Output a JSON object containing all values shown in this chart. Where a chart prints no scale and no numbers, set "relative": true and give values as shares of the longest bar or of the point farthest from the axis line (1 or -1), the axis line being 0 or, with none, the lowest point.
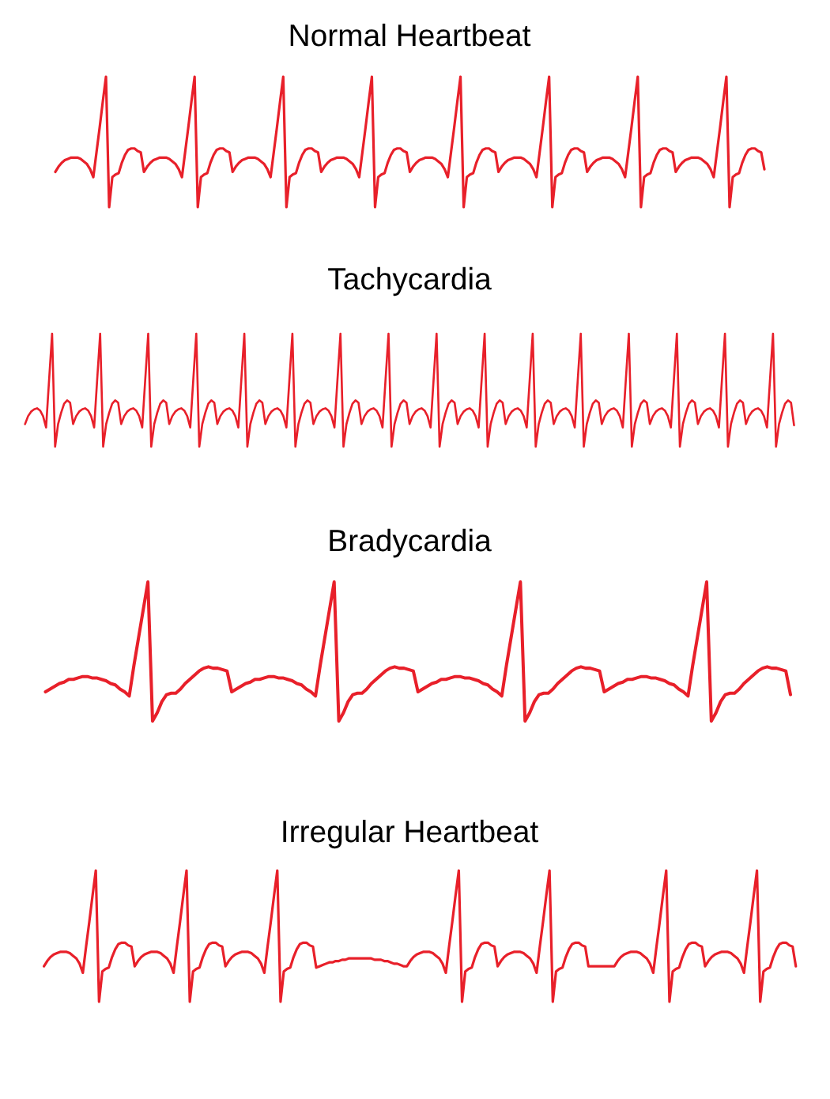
{
  "chart_data": [
    {
      "type": "line",
      "title": "Normal Heartbeat",
      "relative": true,
      "color": "#e8202a",
      "categories": [
        null,
        null,
        null,
        null,
        null,
        null,
        null,
        null,
        null,
        null,
        null,
        null,
        null,
        null,
        null,
        null,
        null,
        null,
        null,
        null,
        null,
        null,
        null,
        null,
        null,
        null,
        null,
        null,
        null,
        null,
        null,
        null,
        null,
        null,
        null,
        null,
        null,
        null,
        null,
        null,
        null,
        null,
        null,
        null,
        null,
        null,
        null,
        null,
        null,
        null,
        null,
        null,
        null,
        null,
        null,
        null,
        null,
        null,
        null,
        null,
        null,
        null,
        null,
        null,
        null,
        null,
        null,
        null,
        null,
        null,
        null,
        null,
        null,
        null,
        null,
        null,
        null,
        null,
        null,
        null,
        null,
        null,
        null,
        null,
        null,
        null,
        null,
        null,
        null,
        null,
        null,
        null,
        null,
        null,
        null,
        null,
        null,
        null,
        null,
        null,
        null,
        null,
        null,
        null,
        null,
        null,
        null,
        null,
        null,
        null,
        null,
        null,
        null,
        null,
        null,
        null,
        null,
        null,
        null,
        null,
        null,
        null,
        null,
        null,
        null,
        null,
        null,
        null,
        null,
        null,
        null,
        null,
        null,
        null,
        null,
        null,
        null,
        null,
        null,
        null,
        null,
        null,
        null,
        null,
        null,
        null,
        null,
        null,
        null,
        null,
        null,
        null,
        null,
        null,
        null,
        null,
        null,
        null,
        null,
        null,
        null,
        null,
        null,
        null,
        null,
        null,
        null,
        null,
        null,
        null,
        null,
        null,
        null,
        null,
        null,
        null,
        null,
        null,
        null,
        null,
        null,
        null,
        null,
        null,
        null,
        null,
        null,
        null,
        null,
        null,
        null,
        null,
        null,
        null,
        null,
        null,
        null,
        null,
        null,
        null,
        null,
        null,
        null,
        null,
        null,
        null,
        null,
        null,
        null,
        null,
        null,
        null,
        null,
        null,
        null,
        null,
        null,
        null,
        null,
        null,
        null,
        null,
        null,
        null,
        null
      ],
      "values": [
        0.27,
        0.31,
        0.34,
        0.36,
        0.37,
        0.38,
        0.38,
        0.38,
        0.37,
        0.35,
        0.33,
        0.29,
        0.23,
        0.42,
        0.61,
        0.81,
        1,
        0,
        0.23,
        0.25,
        0.26,
        0.34,
        0.4,
        0.44,
        0.45,
        0.45,
        0.43,
        0.42,
        0.27,
        0.31,
        0.34,
        0.36,
        0.37,
        0.38,
        0.38,
        0.38,
        0.37,
        0.35,
        0.33,
        0.29,
        0.23,
        0.42,
        0.61,
        0.81,
        1,
        0,
        0.23,
        0.25,
        0.26,
        0.34,
        0.4,
        0.44,
        0.45,
        0.45,
        0.43,
        0.42,
        0.27,
        0.31,
        0.34,
        0.36,
        0.37,
        0.38,
        0.38,
        0.38,
        0.37,
        0.35,
        0.33,
        0.29,
        0.23,
        0.42,
        0.61,
        0.81,
        1,
        0,
        0.23,
        0.25,
        0.26,
        0.34,
        0.4,
        0.44,
        0.45,
        0.45,
        0.43,
        0.42,
        0.27,
        0.31,
        0.34,
        0.36,
        0.37,
        0.38,
        0.38,
        0.38,
        0.37,
        0.35,
        0.33,
        0.29,
        0.23,
        0.42,
        0.61,
        0.81,
        1,
        0,
        0.23,
        0.25,
        0.26,
        0.34,
        0.4,
        0.44,
        0.45,
        0.45,
        0.43,
        0.42,
        0.27,
        0.31,
        0.34,
        0.36,
        0.37,
        0.38,
        0.38,
        0.38,
        0.37,
        0.35,
        0.33,
        0.29,
        0.23,
        0.42,
        0.61,
        0.81,
        1,
        0,
        0.23,
        0.25,
        0.26,
        0.34,
        0.4,
        0.44,
        0.45,
        0.45,
        0.43,
        0.42,
        0.27,
        0.31,
        0.34,
        0.36,
        0.37,
        0.38,
        0.38,
        0.38,
        0.37,
        0.35,
        0.33,
        0.29,
        0.23,
        0.42,
        0.61,
        0.81,
        1,
        0,
        0.23,
        0.25,
        0.26,
        0.34,
        0.4,
        0.44,
        0.45,
        0.45,
        0.43,
        0.42,
        0.27,
        0.31,
        0.34,
        0.36,
        0.37,
        0.38,
        0.38,
        0.38,
        0.37,
        0.35,
        0.33,
        0.29,
        0.23,
        0.42,
        0.61,
        0.81,
        1,
        0,
        0.23,
        0.25,
        0.26,
        0.34,
        0.4,
        0.44,
        0.45,
        0.45,
        0.43,
        0.42,
        0.27,
        0.31,
        0.34,
        0.36,
        0.37,
        0.38,
        0.38,
        0.38,
        0.37,
        0.35,
        0.33,
        0.29,
        0.23,
        0.42,
        0.61,
        0.81,
        1,
        0,
        0.23,
        0.25,
        0.26,
        0.34,
        0.4,
        0.44,
        0.45,
        0.45,
        0.43,
        0.42,
        0.29
      ]
    },
    {
      "type": "line",
      "title": "Tachycardia",
      "relative": true,
      "color": "#e8202a",
      "categories": [
        null,
        null,
        null,
        null,
        null,
        null,
        null,
        null,
        null,
        null,
        null,
        null,
        null,
        null,
        null,
        null,
        null,
        null,
        null,
        null,
        null,
        null,
        null,
        null,
        null,
        null,
        null,
        null,
        null,
        null,
        null,
        null,
        null,
        null,
        null,
        null,
        null,
        null,
        null,
        null,
        null,
        null,
        null,
        null,
        null,
        null,
        null,
        null,
        null,
        null,
        null,
        null,
        null,
        null,
        null,
        null,
        null,
        null,
        null,
        null,
        null,
        null,
        null,
        null,
        null,
        null,
        null,
        null,
        null,
        null,
        null,
        null,
        null,
        null,
        null,
        null,
        null,
        null,
        null,
        null,
        null,
        null,
        null,
        null,
        null,
        null,
        null,
        null,
        null,
        null,
        null,
        null,
        null,
        null,
        null,
        null,
        null,
        null,
        null,
        null,
        null,
        null,
        null,
        null,
        null,
        null,
        null,
        null,
        null,
        null,
        null,
        null,
        null,
        null,
        null,
        null,
        null,
        null,
        null,
        null,
        null,
        null,
        null,
        null,
        null,
        null,
        null,
        null,
        null,
        null,
        null,
        null,
        null,
        null,
        null,
        null,
        null,
        null,
        null,
        null,
        null,
        null,
        null,
        null,
        null,
        null,
        null,
        null,
        null,
        null,
        null,
        null,
        null,
        null,
        null,
        null,
        null,
        null,
        null,
        null,
        null,
        null,
        null,
        null,
        null,
        null,
        null,
        null,
        null,
        null,
        null,
        null,
        null,
        null,
        null,
        null,
        null,
        null,
        null,
        null,
        null,
        null,
        null,
        null,
        null,
        null,
        null,
        null,
        null,
        null,
        null,
        null,
        null,
        null,
        null,
        null,
        null,
        null,
        null,
        null,
        null,
        null,
        null,
        null,
        null,
        null,
        null,
        null,
        null,
        null,
        null,
        null,
        null,
        null,
        null,
        null,
        null,
        null,
        null,
        null,
        null,
        null,
        null,
        null,
        null,
        null,
        null,
        null,
        null,
        null,
        null,
        null,
        null,
        null,
        null,
        null,
        null,
        null,
        null,
        null,
        null,
        null,
        null,
        null,
        null,
        null,
        null,
        null,
        null,
        null,
        null,
        null,
        null,
        null,
        null,
        null,
        null
      ],
      "values": [
        0.2,
        0.27,
        0.31,
        0.33,
        0.34,
        0.32,
        0.27,
        0.17,
        0.59,
        1,
        0,
        0.2,
        0.3,
        0.38,
        0.41,
        0.39,
        0.2,
        0.27,
        0.31,
        0.33,
        0.34,
        0.32,
        0.27,
        0.17,
        0.59,
        1,
        0,
        0.2,
        0.3,
        0.38,
        0.41,
        0.39,
        0.2,
        0.27,
        0.31,
        0.33,
        0.34,
        0.32,
        0.27,
        0.17,
        0.59,
        1,
        0,
        0.2,
        0.3,
        0.38,
        0.41,
        0.39,
        0.2,
        0.27,
        0.31,
        0.33,
        0.34,
        0.32,
        0.27,
        0.17,
        0.59,
        1,
        0,
        0.2,
        0.3,
        0.38,
        0.41,
        0.39,
        0.2,
        0.27,
        0.31,
        0.33,
        0.34,
        0.32,
        0.27,
        0.17,
        0.59,
        1,
        0,
        0.2,
        0.3,
        0.38,
        0.41,
        0.39,
        0.2,
        0.27,
        0.31,
        0.33,
        0.34,
        0.32,
        0.27,
        0.17,
        0.59,
        1,
        0,
        0.2,
        0.3,
        0.38,
        0.41,
        0.39,
        0.2,
        0.27,
        0.31,
        0.33,
        0.34,
        0.32,
        0.27,
        0.17,
        0.59,
        1,
        0,
        0.2,
        0.3,
        0.38,
        0.41,
        0.39,
        0.2,
        0.27,
        0.31,
        0.33,
        0.34,
        0.32,
        0.27,
        0.17,
        0.59,
        1,
        0,
        0.2,
        0.3,
        0.38,
        0.41,
        0.39,
        0.2,
        0.27,
        0.31,
        0.33,
        0.34,
        0.32,
        0.27,
        0.17,
        0.59,
        1,
        0,
        0.2,
        0.3,
        0.38,
        0.41,
        0.39,
        0.2,
        0.27,
        0.31,
        0.33,
        0.34,
        0.32,
        0.27,
        0.17,
        0.59,
        1,
        0,
        0.2,
        0.3,
        0.38,
        0.41,
        0.39,
        0.2,
        0.27,
        0.31,
        0.33,
        0.34,
        0.32,
        0.27,
        0.17,
        0.59,
        1,
        0,
        0.2,
        0.3,
        0.38,
        0.41,
        0.39,
        0.2,
        0.27,
        0.31,
        0.33,
        0.34,
        0.32,
        0.27,
        0.17,
        0.59,
        1,
        0,
        0.2,
        0.3,
        0.38,
        0.41,
        0.39,
        0.2,
        0.27,
        0.31,
        0.33,
        0.34,
        0.32,
        0.27,
        0.17,
        0.59,
        1,
        0,
        0.2,
        0.3,
        0.38,
        0.41,
        0.39,
        0.2,
        0.27,
        0.31,
        0.33,
        0.34,
        0.32,
        0.27,
        0.17,
        0.59,
        1,
        0,
        0.2,
        0.3,
        0.38,
        0.41,
        0.39,
        0.2,
        0.27,
        0.31,
        0.33,
        0.34,
        0.32,
        0.27,
        0.17,
        0.59,
        1,
        0,
        0.2,
        0.3,
        0.38,
        0.41,
        0.39,
        0.2,
        0.27,
        0.31,
        0.33,
        0.34,
        0.32,
        0.27,
        0.17,
        0.59,
        1,
        0,
        0.2,
        0.3,
        0.38,
        0.41,
        0.39,
        0.19
      ]
    },
    {
      "type": "line",
      "title": "Bradycardia",
      "relative": true,
      "color": "#e8202a",
      "categories": [
        null,
        null,
        null,
        null,
        null,
        null,
        null,
        null,
        null,
        null,
        null,
        null,
        null,
        null,
        null,
        null,
        null,
        null,
        null,
        null,
        null,
        null,
        null,
        null,
        null,
        null,
        null,
        null,
        null,
        null,
        null,
        null,
        null,
        null,
        null,
        null,
        null,
        null,
        null,
        null,
        null,
        null,
        null,
        null,
        null,
        null,
        null,
        null,
        null,
        null,
        null,
        null,
        null,
        null,
        null,
        null,
        null,
        null,
        null,
        null,
        null,
        null,
        null,
        null,
        null,
        null,
        null,
        null,
        null,
        null,
        null,
        null,
        null,
        null,
        null,
        null,
        null,
        null,
        null,
        null,
        null,
        null,
        null,
        null,
        null,
        null,
        null,
        null,
        null,
        null,
        null,
        null,
        null,
        null,
        null,
        null,
        null,
        null,
        null,
        null,
        null,
        null,
        null,
        null,
        null,
        null,
        null,
        null,
        null,
        null,
        null,
        null,
        null,
        null,
        null,
        null,
        null,
        null,
        null,
        null,
        null,
        null,
        null,
        null,
        null,
        null,
        null,
        null,
        null,
        null,
        null,
        null,
        null,
        null,
        null,
        null,
        null,
        null,
        null,
        null,
        null,
        null,
        null,
        null,
        null,
        null,
        null,
        null,
        null,
        null,
        null,
        null,
        null,
        null,
        null,
        null,
        null,
        null,
        null,
        null,
        null
      ],
      "values": [
        0.21,
        0.23,
        0.25,
        0.27,
        0.28,
        0.3,
        0.3,
        0.31,
        0.32,
        0.32,
        0.31,
        0.31,
        0.3,
        0.29,
        0.27,
        0.26,
        0.23,
        0.21,
        0.18,
        0.4,
        0.6,
        0.8,
        1,
        0,
        0.06,
        0.14,
        0.19,
        0.2,
        0.2,
        0.23,
        0.27,
        0.3,
        0.33,
        0.36,
        0.38,
        0.39,
        0.38,
        0.38,
        0.37,
        0.36,
        0.21,
        0.23,
        0.25,
        0.27,
        0.28,
        0.3,
        0.3,
        0.31,
        0.32,
        0.32,
        0.31,
        0.31,
        0.3,
        0.29,
        0.27,
        0.26,
        0.23,
        0.21,
        0.18,
        0.4,
        0.6,
        0.8,
        1,
        0,
        0.06,
        0.14,
        0.19,
        0.2,
        0.2,
        0.23,
        0.27,
        0.3,
        0.33,
        0.36,
        0.38,
        0.39,
        0.38,
        0.38,
        0.37,
        0.36,
        0.21,
        0.23,
        0.25,
        0.27,
        0.28,
        0.3,
        0.3,
        0.31,
        0.32,
        0.32,
        0.31,
        0.31,
        0.3,
        0.29,
        0.27,
        0.26,
        0.23,
        0.21,
        0.18,
        0.4,
        0.6,
        0.8,
        1,
        0,
        0.06,
        0.14,
        0.19,
        0.2,
        0.2,
        0.23,
        0.27,
        0.3,
        0.33,
        0.36,
        0.38,
        0.39,
        0.38,
        0.38,
        0.37,
        0.36,
        0.21,
        0.23,
        0.25,
        0.27,
        0.28,
        0.3,
        0.3,
        0.31,
        0.32,
        0.32,
        0.31,
        0.31,
        0.3,
        0.29,
        0.27,
        0.26,
        0.23,
        0.21,
        0.18,
        0.4,
        0.6,
        0.8,
        1,
        0,
        0.06,
        0.14,
        0.19,
        0.2,
        0.2,
        0.23,
        0.27,
        0.3,
        0.33,
        0.36,
        0.38,
        0.39,
        0.38,
        0.38,
        0.37,
        0.36,
        0.19
      ]
    },
    {
      "type": "line",
      "title": "Irregular Heartbeat",
      "relative": true,
      "color": "#e8202a",
      "categories": [
        null,
        null,
        null,
        null,
        null,
        null,
        null,
        null,
        null,
        null,
        null,
        null,
        null,
        null,
        null,
        null,
        null,
        null,
        null,
        null,
        null,
        null,
        null,
        null,
        null,
        null,
        null,
        null,
        null,
        null,
        null,
        null,
        null,
        null,
        null,
        null,
        null,
        null,
        null,
        null,
        null,
        null,
        null,
        null,
        null,
        null,
        null,
        null,
        null,
        null,
        null,
        null,
        null,
        null,
        null,
        null,
        null,
        null,
        null,
        null,
        null,
        null,
        null,
        null,
        null,
        null,
        null,
        null,
        null,
        null,
        null,
        null,
        null,
        null,
        null,
        null,
        null,
        null,
        null,
        null,
        null,
        null,
        null,
        null,
        null,
        null,
        null,
        null,
        null,
        null,
        null,
        null,
        null,
        null,
        null,
        null,
        null,
        null,
        null,
        null,
        null,
        null,
        null,
        null,
        null,
        null,
        null,
        null,
        null,
        null,
        null,
        null,
        null,
        null,
        null,
        null,
        null,
        null,
        null,
        null,
        null,
        null,
        null,
        null,
        null,
        null,
        null,
        null,
        null,
        null,
        null,
        null,
        null,
        null,
        null,
        null,
        null,
        null,
        null,
        null,
        null,
        null,
        null,
        null,
        null,
        null,
        null,
        null,
        null,
        null,
        null,
        null,
        null,
        null,
        null,
        null,
        null,
        null,
        null,
        null,
        null,
        null,
        null,
        null,
        null,
        null,
        null,
        null,
        null,
        null,
        null,
        null,
        null,
        null,
        null,
        null,
        null,
        null,
        null,
        null,
        null,
        null,
        null,
        null,
        null,
        null,
        null,
        null,
        null,
        null,
        null,
        null,
        null,
        null,
        null,
        null,
        null,
        null,
        null,
        null,
        null,
        null,
        null,
        null,
        null,
        null,
        null,
        null,
        null,
        null,
        null,
        null,
        null,
        null,
        null,
        null,
        null,
        null,
        null,
        null,
        null,
        null,
        null,
        null,
        null,
        null,
        null,
        null,
        null,
        null,
        null,
        null,
        null
      ],
      "values": [
        0.27,
        0.31,
        0.34,
        0.36,
        0.37,
        0.38,
        0.38,
        0.38,
        0.37,
        0.35,
        0.33,
        0.29,
        0.22,
        0.42,
        0.61,
        0.81,
        1,
        0,
        0.23,
        0.25,
        0.26,
        0.34,
        0.4,
        0.44,
        0.45,
        0.45,
        0.43,
        0.42,
        0.27,
        0.31,
        0.34,
        0.36,
        0.37,
        0.38,
        0.38,
        0.38,
        0.37,
        0.35,
        0.33,
        0.29,
        0.22,
        0.42,
        0.61,
        0.81,
        1,
        0,
        0.23,
        0.25,
        0.26,
        0.34,
        0.4,
        0.44,
        0.45,
        0.45,
        0.43,
        0.42,
        0.27,
        0.31,
        0.34,
        0.36,
        0.37,
        0.38,
        0.38,
        0.38,
        0.37,
        0.35,
        0.33,
        0.29,
        0.22,
        0.42,
        0.61,
        0.81,
        1,
        0,
        0.23,
        0.25,
        0.26,
        0.34,
        0.4,
        0.44,
        0.45,
        0.45,
        0.43,
        0.42,
        0.26,
        0.27,
        0.28,
        0.29,
        0.3,
        0.3,
        0.31,
        0.31,
        0.32,
        0.32,
        0.33,
        0.33,
        0.33,
        0.33,
        0.33,
        0.33,
        0.33,
        0.33,
        0.32,
        0.32,
        0.32,
        0.31,
        0.31,
        0.3,
        0.29,
        0.29,
        0.28,
        0.27,
        0.27,
        0.31,
        0.34,
        0.36,
        0.37,
        0.38,
        0.38,
        0.38,
        0.37,
        0.35,
        0.33,
        0.29,
        0.22,
        0.42,
        0.61,
        0.81,
        1,
        0,
        0.23,
        0.25,
        0.26,
        0.34,
        0.4,
        0.44,
        0.45,
        0.45,
        0.43,
        0.42,
        0.27,
        0.31,
        0.34,
        0.36,
        0.37,
        0.38,
        0.38,
        0.38,
        0.37,
        0.35,
        0.33,
        0.29,
        0.22,
        0.42,
        0.61,
        0.81,
        1,
        0,
        0.23,
        0.25,
        0.26,
        0.34,
        0.4,
        0.44,
        0.45,
        0.45,
        0.43,
        0.42,
        0.27,
        0.27,
        0.27,
        0.27,
        0.27,
        0.27,
        0.27,
        0.27,
        0.27,
        0.31,
        0.34,
        0.36,
        0.37,
        0.38,
        0.38,
        0.38,
        0.37,
        0.35,
        0.33,
        0.29,
        0.22,
        0.42,
        0.61,
        0.81,
        1,
        0,
        0.23,
        0.25,
        0.26,
        0.34,
        0.4,
        0.44,
        0.45,
        0.45,
        0.43,
        0.42,
        0.27,
        0.31,
        0.34,
        0.36,
        0.37,
        0.38,
        0.38,
        0.38,
        0.37,
        0.35,
        0.33,
        0.29,
        0.22,
        0.42,
        0.61,
        0.81,
        1,
        0,
        0.23,
        0.25,
        0.26,
        0.34,
        0.4,
        0.44,
        0.45,
        0.45,
        0.43,
        0.42,
        0.27
      ]
    }
  ]
}
